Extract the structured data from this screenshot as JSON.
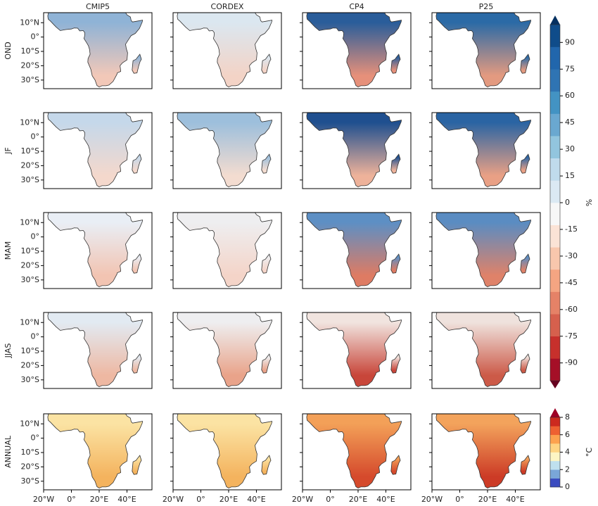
{
  "columns": [
    "CMIP5",
    "CORDEX",
    "CP4",
    "P25"
  ],
  "rows": [
    "OND",
    "JF",
    "MAM",
    "JJAS",
    "ANNUAL"
  ],
  "map": {
    "xlim": [
      -20,
      58
    ],
    "ylim": [
      -36,
      17
    ],
    "xticks": [
      {
        "value": -20,
        "label": "20°W"
      },
      {
        "value": 0,
        "label": "0°"
      },
      {
        "value": 20,
        "label": "20°E"
      },
      {
        "value": 40,
        "label": "40°E"
      }
    ],
    "yticks": [
      {
        "value": 10,
        "label": "10°N"
      },
      {
        "value": 0,
        "label": "0°"
      },
      {
        "value": -10,
        "label": "10°S"
      },
      {
        "value": -20,
        "label": "20°S"
      },
      {
        "value": -30,
        "label": "30°S"
      }
    ]
  },
  "panel_colors": [
    [
      [
        "#8fb3d6",
        "#f2c8b8"
      ],
      [
        "#dbe7f0",
        "#f3d3c6"
      ],
      [
        "#2a5d9a",
        "#e6907a"
      ],
      [
        "#2b6aa6",
        "#e39a80"
      ]
    ],
    [
      [
        "#c5d8ea",
        "#f4d8cc"
      ],
      [
        "#9dbfdc",
        "#f3dcd0"
      ],
      [
        "#1f4f8f",
        "#eeb29a"
      ],
      [
        "#2a64a3",
        "#e9a085"
      ]
    ],
    [
      [
        "#e9eef5",
        "#f2c4b2"
      ],
      [
        "#eeeef0",
        "#f4d4c8"
      ],
      [
        "#5d8fc4",
        "#de7b63"
      ],
      [
        "#5a8cc2",
        "#df8269"
      ]
    ],
    [
      [
        "#e2eaf2",
        "#eeb8a2"
      ],
      [
        "#eeeef0",
        "#e9a38a"
      ],
      [
        "#f1e4df",
        "#c8463a"
      ],
      [
        "#efe2dd",
        "#cc5a48"
      ]
    ],
    [
      [
        "#fbe3a3",
        "#f4b35e"
      ],
      [
        "#fbe3a3",
        "#f4b35e"
      ],
      [
        "#f3a058",
        "#d54a2c"
      ],
      [
        "#f3a35c",
        "#cc3b26"
      ]
    ]
  ],
  "colorbars": [
    {
      "label": "%",
      "clim": [
        -100,
        100
      ],
      "ticks": [
        90,
        75,
        60,
        45,
        30,
        15,
        0,
        -15,
        -30,
        -45,
        -60,
        -75,
        -90
      ],
      "extend": "both",
      "colors": [
        "#67001f",
        "#a50f27",
        "#c7302c",
        "#d6604d",
        "#e58267",
        "#f4a582",
        "#f8c7ad",
        "#fbe3d6",
        "#f7f7f7",
        "#dbe9f3",
        "#c0dbec",
        "#92c5de",
        "#6aa8d0",
        "#4393c3",
        "#2f74b3",
        "#2166ac",
        "#0f4c8a",
        "#053061"
      ]
    },
    {
      "label": "°C",
      "clim": [
        0,
        8
      ],
      "ticks": [
        0,
        2,
        4,
        6,
        8
      ],
      "extend": "max",
      "colors": [
        "#3b4cc0",
        "#7aa6d8",
        "#bfe0ee",
        "#fdf5c4",
        "#fed482",
        "#fca24e",
        "#ee6131",
        "#cc2a1f",
        "#9e0026"
      ]
    }
  ]
}
